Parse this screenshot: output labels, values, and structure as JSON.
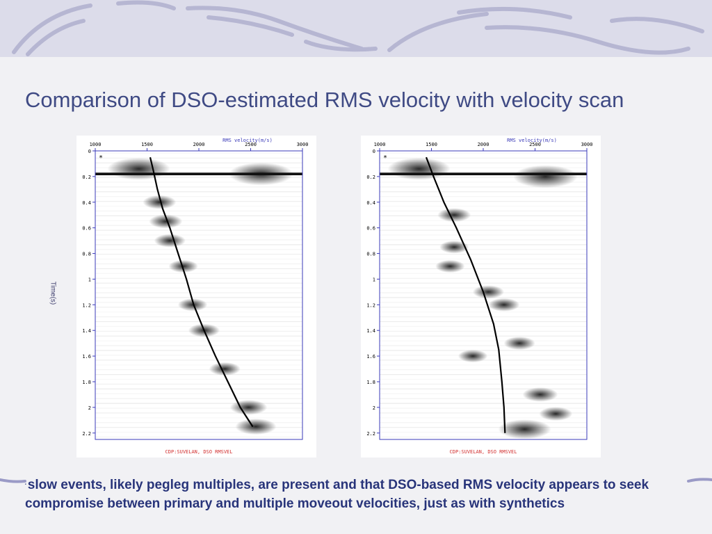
{
  "slide": {
    "title": "Comparison of DSO-estimated RMS velocity with velocity scan",
    "y_label": "Time(s)",
    "caption_bullet": "•",
    "caption": "slow events, likely pegleg multiples, are present and that DSO-based RMS velocity appears to seek compromise between primary and multiple moveout velocities, just as with synthetics",
    "accent_color": "#3f4a84",
    "caption_color": "#28347a"
  },
  "chart_data": [
    {
      "type": "heatmap",
      "xlabel": "RMS velocity(m/s)",
      "footer": "CDP:SUVELAN, DSO RMSVEL",
      "xlim": [
        1000,
        3000
      ],
      "ylim": [
        0,
        2.25
      ],
      "x_ticks": [
        1000,
        1500,
        2000,
        2500,
        3000
      ],
      "y_ticks": [
        0,
        0.2,
        0.4,
        0.6,
        0.8,
        1,
        1.2,
        1.4,
        1.6,
        1.8,
        2,
        2.2
      ],
      "y_tick_labels": [
        "0",
        "0.2",
        "0.4",
        "0.6",
        "0.8",
        "1",
        "1.2",
        "1.4",
        "1.6",
        "1.8",
        "2",
        "2.2"
      ],
      "marker": "*",
      "series": [
        {
          "values": [
            [
              1530,
              0.05
            ],
            [
              1560,
              0.15
            ],
            [
              1600,
              0.3
            ],
            [
              1650,
              0.45
            ],
            [
              1720,
              0.6
            ],
            [
              1800,
              0.8
            ],
            [
              1880,
              1.0
            ],
            [
              1950,
              1.2
            ],
            [
              2050,
              1.4
            ],
            [
              2160,
              1.6
            ],
            [
              2280,
              1.8
            ],
            [
              2400,
              2.0
            ],
            [
              2520,
              2.15
            ]
          ]
        }
      ],
      "energy": [
        [
          1420,
          0.14,
          2.5
        ],
        [
          2600,
          0.18,
          2.6
        ],
        [
          1620,
          0.4,
          1.0
        ],
        [
          1680,
          0.55,
          1.0
        ],
        [
          1720,
          0.7,
          0.9
        ],
        [
          1850,
          0.9,
          0.8
        ],
        [
          1940,
          1.2,
          0.8
        ],
        [
          2050,
          1.4,
          0.9
        ],
        [
          2250,
          1.7,
          0.9
        ],
        [
          2480,
          2.0,
          1.2
        ],
        [
          2550,
          2.15,
          1.4
        ]
      ]
    },
    {
      "type": "heatmap",
      "xlabel": "RMS velocity(m/s)",
      "footer": "CDP:SUVELAN, DSO RMSVEL",
      "xlim": [
        1000,
        3000
      ],
      "ylim": [
        0,
        2.25
      ],
      "x_ticks": [
        1000,
        1500,
        2000,
        2500,
        3000
      ],
      "y_ticks": [
        0,
        0.2,
        0.4,
        0.6,
        0.8,
        1,
        1.2,
        1.4,
        1.6,
        1.8,
        2,
        2.2
      ],
      "y_tick_labels": [
        "0",
        "0.2",
        "0.4",
        "0.6",
        "0.8",
        "1",
        "1.2",
        "1.4",
        "1.6",
        "1.8",
        "2",
        "2.2"
      ],
      "marker": "*",
      "series": [
        {
          "values": [
            [
              1450,
              0.05
            ],
            [
              1520,
              0.2
            ],
            [
              1620,
              0.4
            ],
            [
              1740,
              0.6
            ],
            [
              1880,
              0.85
            ],
            [
              2000,
              1.1
            ],
            [
              2100,
              1.35
            ],
            [
              2150,
              1.55
            ],
            [
              2180,
              1.8
            ],
            [
              2200,
              2.0
            ],
            [
              2210,
              2.2
            ]
          ]
        }
      ],
      "energy": [
        [
          1380,
          0.14,
          2.5
        ],
        [
          2600,
          0.2,
          2.6
        ],
        [
          1720,
          0.5,
          1.0
        ],
        [
          1720,
          0.75,
          0.8
        ],
        [
          1680,
          0.9,
          0.8
        ],
        [
          2050,
          1.1,
          0.9
        ],
        [
          2200,
          1.2,
          0.9
        ],
        [
          2350,
          1.5,
          0.9
        ],
        [
          1900,
          1.6,
          0.8
        ],
        [
          2550,
          1.9,
          1.1
        ],
        [
          2700,
          2.05,
          1.0
        ],
        [
          2400,
          2.17,
          2.0
        ]
      ]
    }
  ]
}
